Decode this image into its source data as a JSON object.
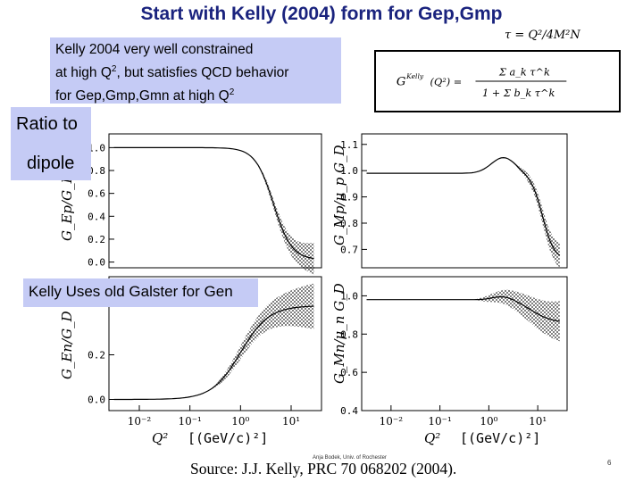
{
  "slide": {
    "title": "Start with Kelly (2004) form for Gep,Gmp",
    "tau_formula": "τ = Q²/4M²N",
    "kelly_box": {
      "line1": "Kelly 2004 very well constrained",
      "line2_pre": "at high Q",
      "line2_sup": "2",
      "line2_post": ", but satisfies QCD behavior",
      "line3_pre": "for Gep,Gmp,Gmn at high Q",
      "line3_sup": "2"
    },
    "formula_lhs": "G",
    "formula_lhs_sup": "Kelly",
    "formula_lhs_arg": "(Q²) =",
    "formula_num": "Σ a_k τ^k",
    "formula_den": "1 + Σ b_k τ^k",
    "ratio_label_1": "Ratio to",
    "ratio_label_2": "dipole",
    "gen_label": "Kelly Uses old Galster for Gen",
    "credit": "Anja Bodek, Univ. of Rochester",
    "source": "Source:  J.J. Kelly, PRC 70 068202 (2004).",
    "page_number": "6"
  },
  "plots": {
    "gep": {
      "ylabel": "G_Ep/G_D",
      "ticks": [
        "1.0",
        "0.8",
        "0.6",
        "0.4",
        "0.2",
        "0.0"
      ],
      "tick_values": [
        1.0,
        0.8,
        0.6,
        0.4,
        0.2,
        0.0
      ],
      "ylim": [
        -0.05,
        1.12
      ]
    },
    "gmp": {
      "ylabel": "G_Mp/μ_p G_D",
      "ticks": [
        "1.1",
        "1.0",
        "0.9",
        "0.8",
        "0.7"
      ],
      "tick_values": [
        1.1,
        1.0,
        0.9,
        0.8,
        0.7
      ],
      "ylim": [
        0.63,
        1.14
      ]
    },
    "gen": {
      "ylabel": "G_En/G_D",
      "ticks": [
        "0.2",
        "0.0"
      ],
      "tick_values": [
        0.2,
        0.0
      ],
      "ylim": [
        -0.05,
        0.55
      ]
    },
    "gmn": {
      "ylabel": "G_Mn/μ_n G_D",
      "ticks": [
        "1.0",
        "0.8",
        "0.6",
        "0.4"
      ],
      "tick_values": [
        1.0,
        0.8,
        0.6,
        0.4
      ],
      "ylim": [
        0.4,
        1.1
      ]
    },
    "x_ticks": [
      "10⁻²",
      "10⁻¹",
      "10⁰",
      "10¹"
    ],
    "xlabel_left": "Q²",
    "xlabel_right": "[(GeV/c)²]"
  }
}
